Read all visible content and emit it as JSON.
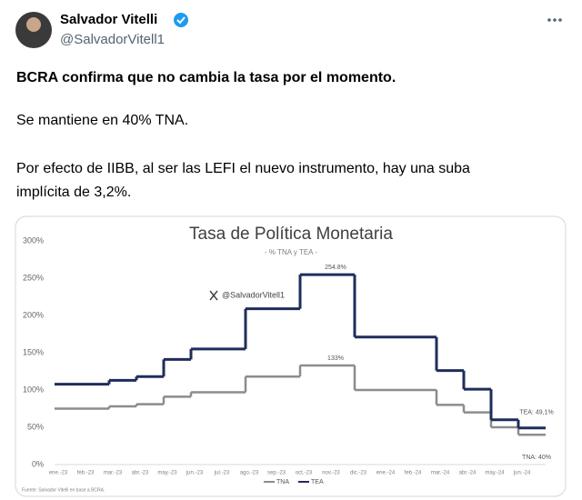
{
  "tweet": {
    "name": "Salvador Vitelli",
    "handle": "@SalvadorVitell1",
    "lines": [
      "BCRA confirma que no cambia la tasa por el momento.",
      "Se mantiene en 40% TNA.",
      "Por efecto de IIBB, al ser las LEFI el nuevo instrumento, hay una suba",
      "implícita de 3,2%."
    ]
  },
  "chart_data": {
    "type": "step",
    "title": "Tasa de Política Monetaria",
    "subtitle": "- % TNA y TEA -",
    "watermark": "@SalvadorVitell1",
    "source": "Fuente: Salvador Vitelli en base a BCRA.",
    "categories": [
      "ene.-23",
      "feb.-23",
      "mar.-23",
      "abr.-23",
      "may.-23",
      "jun.-23",
      "jul.-23",
      "ago.-23",
      "sep.-23",
      "oct.-23",
      "nov.-23",
      "dic.-23",
      "ene.-24",
      "feb.-24",
      "mar.-24",
      "abr.-24",
      "may.-24",
      "jun.-24"
    ],
    "series": [
      {
        "name": "TNA",
        "color": "#8c8c8c",
        "values": [
          75,
          75,
          78,
          81,
          91,
          97,
          97,
          118,
          118,
          133,
          133,
          100,
          100,
          100,
          80,
          70,
          50,
          40
        ]
      },
      {
        "name": "TEA",
        "color": "#1f2d5a",
        "values": [
          107.7,
          107.7,
          113,
          118,
          141,
          155,
          155,
          209,
          209,
          254.8,
          254.8,
          171,
          171,
          171,
          126,
          101,
          60,
          49.1
        ]
      }
    ],
    "annotations": [
      "254.8%",
      "133%",
      "TEA: 49,1%",
      "TNA: 40%"
    ],
    "ylim": [
      0,
      300
    ],
    "yticks": [
      {
        "value": 0,
        "label": "0%"
      },
      {
        "value": 50,
        "label": "50%"
      },
      {
        "value": 100,
        "label": "100%"
      },
      {
        "value": 150,
        "label": "150%"
      },
      {
        "value": 200,
        "label": "200%"
      },
      {
        "value": 250,
        "label": "250%"
      },
      {
        "value": 300,
        "label": "300%"
      }
    ],
    "legend": "bottom"
  }
}
